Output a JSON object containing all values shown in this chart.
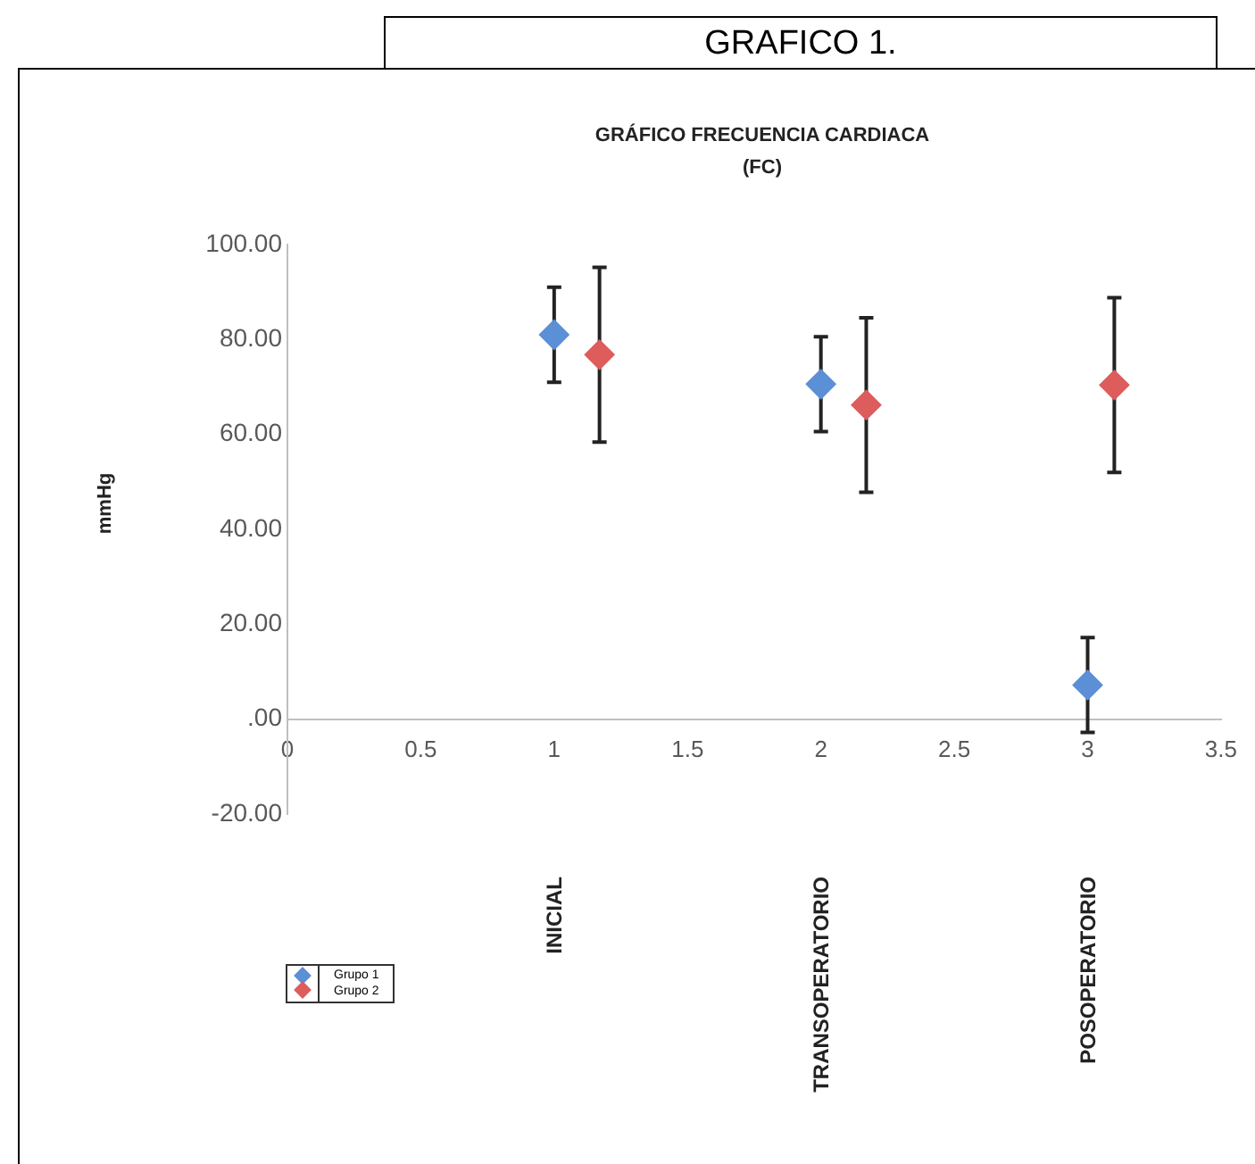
{
  "chart_data": {
    "type": "scatter",
    "title": "GRAFICO 1.",
    "subtitle": "GRÁFICO FRECUENCIA CARDIACA\n(FC)",
    "ylabel": "mmHg",
    "xlim": [
      0,
      3.5
    ],
    "xticks": [
      0,
      0.5,
      1,
      1.5,
      2,
      2.5,
      3,
      3.5
    ],
    "ylim": [
      -20,
      100
    ],
    "yticks": [
      {
        "value": -20,
        "label": "-20.00"
      },
      {
        "value": 0,
        "label": ".00"
      },
      {
        "value": 20,
        "label": "20.00"
      },
      {
        "value": 40,
        "label": "40.00"
      },
      {
        "value": 60,
        "label": "60.00"
      },
      {
        "value": 80,
        "label": "80.00"
      },
      {
        "value": 100,
        "label": "100.00"
      }
    ],
    "series": [
      {
        "name": "Grupo 1",
        "color": "#5b8fd6",
        "x": [
          1,
          2,
          3
        ],
        "values": [
          81,
          70.6,
          7.2
        ],
        "errors": [
          10,
          10,
          10
        ]
      },
      {
        "name": "Grupo 2",
        "color": "#dd5c5c",
        "x": [
          1.17,
          2.17,
          3.1
        ],
        "values": [
          76.8,
          66.2,
          70.4
        ],
        "errors": [
          18.4,
          18.4,
          18.4
        ]
      }
    ],
    "annotations": [
      "INICIAL",
      "TRANSOPERATORIO",
      "POSOPERATORIO"
    ],
    "marker": "diamond",
    "grid": false,
    "legend": "bottom left"
  }
}
